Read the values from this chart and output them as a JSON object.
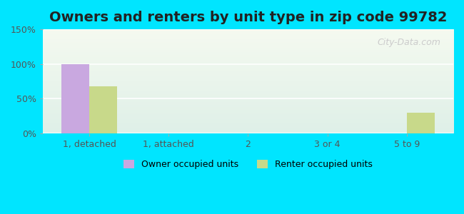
{
  "title": "Owners and renters by unit type in zip code 99782",
  "categories": [
    "1, detached",
    "1, attached",
    "2",
    "3 or 4",
    "5 to 9"
  ],
  "owner_values": [
    100,
    0,
    0,
    0,
    0
  ],
  "renter_values": [
    68,
    0,
    0,
    0,
    30
  ],
  "owner_color": "#c9a8e0",
  "renter_color": "#c8d98a",
  "ylim": [
    0,
    150
  ],
  "yticks": [
    0,
    50,
    100,
    150
  ],
  "ytick_labels": [
    "0%",
    "50%",
    "100%",
    "150%"
  ],
  "background_outer": "#00e5ff",
  "background_inner_top": "#e8f5e9",
  "background_inner_bottom": "#f0f8e8",
  "bar_width": 0.35,
  "legend_owner": "Owner occupied units",
  "legend_renter": "Renter occupied units",
  "title_fontsize": 14,
  "watermark": "City-Data.com"
}
